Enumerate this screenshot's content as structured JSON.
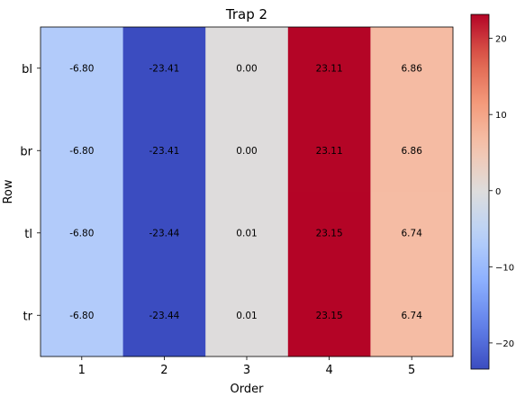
{
  "chart_data": {
    "type": "heatmap",
    "title": "Trap 2",
    "xlabel": "Order",
    "ylabel": "Row",
    "x_categories": [
      "1",
      "2",
      "3",
      "4",
      "5"
    ],
    "y_categories": [
      "bl",
      "br",
      "tl",
      "tr"
    ],
    "values": [
      [
        -6.8,
        -23.41,
        0.0,
        23.11,
        6.86
      ],
      [
        -6.8,
        -23.41,
        0.0,
        23.11,
        6.86
      ],
      [
        -6.8,
        -23.44,
        0.01,
        23.15,
        6.74
      ],
      [
        -6.8,
        -23.44,
        0.01,
        23.15,
        6.74
      ]
    ],
    "cell_labels": [
      [
        "-6.80",
        "-23.41",
        "0.00",
        "23.11",
        "6.86"
      ],
      [
        "-6.80",
        "-23.41",
        "0.00",
        "23.11",
        "6.86"
      ],
      [
        "-6.80",
        "-23.44",
        "0.01",
        "23.15",
        "6.74"
      ],
      [
        "-6.80",
        "-23.44",
        "0.01",
        "23.15",
        "6.74"
      ]
    ],
    "colormap": "coolwarm",
    "vmin": -23.44,
    "vmax": 23.15,
    "colorbar": {
      "ticks": [
        -20,
        -10,
        0,
        10,
        20
      ],
      "tick_labels": [
        "−20",
        "−10",
        "0",
        "10",
        "20"
      ]
    }
  }
}
